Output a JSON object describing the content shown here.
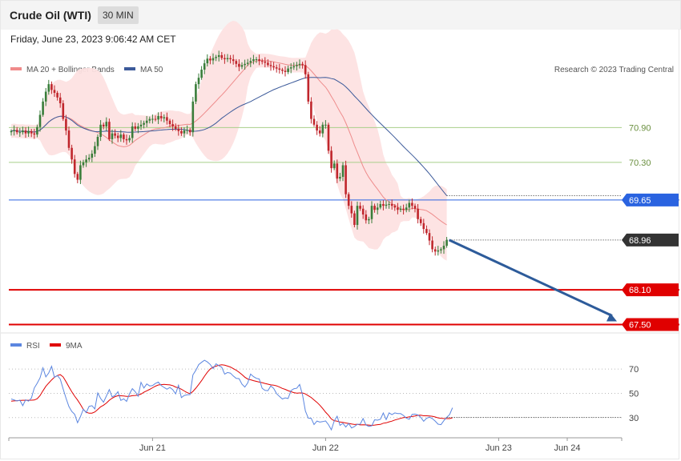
{
  "header": {
    "title": "Crude Oil (WTI)",
    "interval": "30 MIN",
    "datetime": "Friday, June 23, 2023 9:06:42 AM CET"
  },
  "legend": {
    "ma20": "MA 20 + Bollinger Bands",
    "ma50": "MA 50",
    "copyright": "Research © 2023 Trading Central",
    "rsi": "RSI",
    "rsi_ma": "9MA"
  },
  "colors": {
    "up": "#3a7d3a",
    "down": "#c0262c",
    "bb_fill": "#fde2e2",
    "ma20": "#ee8c8c",
    "ma50": "#3c5a9a",
    "pivot_blue": "#2a63e0",
    "support_red": "#e00000",
    "resistance_green": "#a8cf8a",
    "current": "#333333",
    "rsi_line": "#5b86e0",
    "rsi_ma": "#e00000",
    "arrow": "#2d5b9a"
  },
  "chart_data": [
    {
      "type": "candlestick",
      "title": "Crude Oil (WTI)",
      "ylim": [
        67.3,
        72.55
      ],
      "x_tick_labels": [
        "Jun 21",
        "Jun 22",
        "Jun 23",
        "Jun 24"
      ],
      "current_price": 68.96,
      "levels": [
        {
          "value": 70.9,
          "label": "70.90",
          "kind": "resistance"
        },
        {
          "value": 70.3,
          "label": "70.30",
          "kind": "resistance"
        },
        {
          "value": 69.65,
          "label": "69.65",
          "kind": "pivot"
        },
        {
          "value": 68.1,
          "label": "68.10",
          "kind": "support"
        },
        {
          "value": 67.5,
          "label": "67.50",
          "kind": "support"
        }
      ],
      "closes": [
        70.84,
        70.86,
        70.82,
        70.82,
        70.85,
        70.8,
        70.84,
        70.8,
        70.78,
        70.91,
        71.12,
        71.35,
        71.52,
        71.65,
        71.55,
        71.5,
        71.42,
        71.32,
        71.05,
        70.85,
        70.55,
        70.35,
        70.1,
        70.0,
        70.25,
        70.3,
        70.35,
        70.38,
        70.45,
        70.58,
        70.74,
        70.95,
        70.92,
        71.0,
        70.7,
        70.8,
        70.76,
        70.72,
        70.78,
        70.7,
        70.68,
        70.72,
        70.92,
        70.88,
        70.92,
        70.95,
        70.98,
        71.02,
        71.05,
        71.05,
        71.04,
        71.1,
        71.06,
        71.08,
        71.02,
        70.96,
        70.92,
        70.88,
        70.84,
        70.8,
        70.85,
        70.86,
        70.82,
        71.35,
        71.65,
        71.76,
        71.9,
        72.01,
        72.09,
        72.06,
        72.1,
        72.12,
        72.15,
        72.1,
        72.08,
        72.1,
        72.08,
        72.05,
        72.0,
        71.95,
        71.98,
        72.0,
        72.02,
        72.05,
        72.08,
        72.08,
        72.05,
        72.04,
        72.02,
        71.98,
        71.96,
        71.94,
        71.92,
        71.9,
        71.88,
        71.86,
        71.92,
        71.94,
        71.96,
        71.98,
        72.0,
        71.98,
        71.82,
        71.35,
        71.05,
        70.95,
        70.85,
        70.8,
        70.95,
        70.95,
        70.5,
        70.2,
        70.28,
        70.02,
        70.05,
        70.25,
        69.75,
        69.55,
        69.42,
        69.22,
        69.55,
        69.5,
        69.4,
        69.3,
        69.32,
        69.55,
        69.48,
        69.52,
        69.58,
        69.55,
        69.57,
        69.58,
        69.55,
        69.52,
        69.48,
        69.5,
        69.48,
        69.52,
        69.6,
        69.55,
        69.5,
        69.32,
        69.25,
        69.15,
        69.08,
        68.95,
        68.8,
        68.76,
        68.78,
        68.8,
        68.86,
        68.96
      ],
      "rsi": {
        "ylim": [
          18,
          80
        ],
        "ticks": [
          30,
          50,
          70
        ],
        "rsi_values": [
          45.4,
          44.6,
          43.7,
          44.4,
          39.8,
          44.7,
          43.6,
          46.1,
          54.4,
          58.3,
          62.8,
          71.0,
          63.6,
          66.8,
          72.3,
          63.2,
          64.6,
          61.8,
          53.7,
          46.0,
          39.2,
          35.1,
          32.7,
          25.8,
          30.8,
          36.9,
          34.1,
          39.3,
          39.8,
          37.2,
          50.3,
          45.8,
          42.7,
          47.8,
          53.1,
          47.1,
          48.3,
          51.4,
          44.2,
          45.5,
          43.4,
          49.6,
          53.9,
          51.4,
          47.6,
          59.1,
          54.4,
          57.8,
          56.1,
          56.4,
          58.2,
          59.3,
          56.5,
          54.9,
          53.4,
          54.9,
          53.0,
          49.6,
          56.7,
          46.5,
          48.3,
          48.8,
          49.0,
          65.2,
          69.0,
          73.7,
          75.6,
          77.3,
          75.9,
          73.8,
          70.4,
          74.3,
          72.8,
          71.5,
          65.9,
          67.2,
          66.7,
          64.3,
          62.3,
          62.1,
          57.6,
          55.2,
          58.6,
          65.9,
          63.8,
          62.4,
          61.8,
          54.2,
          52.4,
          52.2,
          56.1,
          54.1,
          49.8,
          47.5,
          45.4,
          46.3,
          45.8,
          52.2,
          53.8,
          54.2,
          57.3,
          48.8,
          35.4,
          29.6,
          29.5,
          24.3,
          27.2,
          26.3,
          26.7,
          27.3,
          24.2,
          20.0,
          27.3,
          31.1,
          23.6,
          25.3,
          22.2,
          25.2,
          21.5,
          22.6,
          24.5,
          24.6,
          29.3,
          23.9,
          22.8,
          23.3,
          28.2,
          27.9,
          28.6,
          33.8,
          28.4,
          33.9,
          32.5,
          33.9,
          33.4,
          33.3,
          31.8,
          29.6,
          28.6,
          32.7,
          32.9,
          32.2,
          30.3,
          27.0,
          29.4,
          30.4,
          29.2,
          27.2,
          24.6,
          24.2,
          27.5,
          30.2,
          32.5,
          38.1
        ],
        "ma_values": [
          43.5,
          43.8,
          44.0,
          44.1,
          44.3,
          44.3,
          44.3,
          44.4,
          44.5,
          45.6,
          48.2,
          52.1,
          55.8,
          58.5,
          61.1,
          63.3,
          64.7,
          65.4,
          63.6,
          59.6,
          55.3,
          51.3,
          47.7,
          44.5,
          40.8,
          36.8,
          34.4,
          33.6,
          33.7,
          34.7,
          36.7,
          38.9,
          40.2,
          42.0,
          44.3,
          46.0,
          47.3,
          48.1,
          48.0,
          47.8,
          47.5,
          47.6,
          48.1,
          48.3,
          48.6,
          49.4,
          50.9,
          52.1,
          53.3,
          54.6,
          55.9,
          56.9,
          57.2,
          57.4,
          57.2,
          57.0,
          56.4,
          55.2,
          54.5,
          53.4,
          52.0,
          50.6,
          49.8,
          51.6,
          54.3,
          57.3,
          60.5,
          64.1,
          67.4,
          70.1,
          71.6,
          72.4,
          73.2,
          73.6,
          73.2,
          72.5,
          71.7,
          70.4,
          69.1,
          67.4,
          65.5,
          63.3,
          61.8,
          61.2,
          60.5,
          59.9,
          59.3,
          58.8,
          58.2,
          57.6,
          57.0,
          56.8,
          56.2,
          55.2,
          54.1,
          53.3,
          52.2,
          51.4,
          50.6,
          50.1,
          50.3,
          50.3,
          49.5,
          48.1,
          46.6,
          44.5,
          42.6,
          40.2,
          37.5,
          34.5,
          32.0,
          28.9,
          27.4,
          27.1,
          26.4,
          26.1,
          25.6,
          25.2,
          24.7,
          24.3,
          24.5,
          24.0,
          24.1,
          24.0,
          23.9,
          23.6,
          23.9,
          24.2,
          24.4,
          25.4,
          25.7,
          26.5,
          27.1,
          28.0,
          28.7,
          29.4,
          30.0,
          30.2,
          30.6,
          30.9,
          31.4,
          31.9,
          32.0,
          31.5,
          31.5,
          31.4,
          31.1,
          30.5,
          29.8,
          29.5,
          29.3,
          29.2,
          29.2,
          29.9
        ]
      }
    }
  ]
}
